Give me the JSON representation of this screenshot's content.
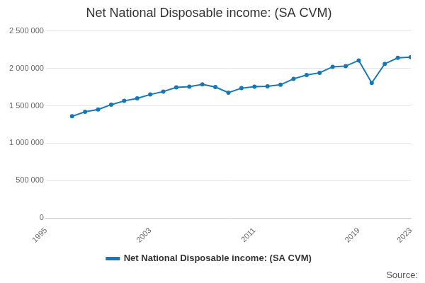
{
  "chart_data": {
    "type": "line",
    "title": "Net National Disposable income: (SA CVM)",
    "source": "Source:",
    "x": [
      1997,
      1998,
      1999,
      2000,
      2001,
      2002,
      2003,
      2004,
      2005,
      2006,
      2007,
      2008,
      2009,
      2010,
      2011,
      2012,
      2013,
      2014,
      2015,
      2016,
      2017,
      2018,
      2019,
      2020,
      2021,
      2022,
      2023
    ],
    "series": [
      {
        "name": "Net National Disposable income: (SA CVM)",
        "color": "#1478b8",
        "marker": "circle",
        "values": [
          1360000,
          1420000,
          1450000,
          1515000,
          1565000,
          1600000,
          1650000,
          1690000,
          1745000,
          1755000,
          1785000,
          1750000,
          1675000,
          1735000,
          1755000,
          1760000,
          1780000,
          1860000,
          1910000,
          1940000,
          2020000,
          2030000,
          2105000,
          1805000,
          2060000,
          2140000,
          2150000
        ]
      }
    ],
    "xlim": [
      1995,
      2023
    ],
    "xticks": [
      1995,
      2003,
      2011,
      2019,
      2023
    ],
    "ylim": [
      0,
      2500000
    ],
    "yticks": [
      0,
      {
        "value": 500000,
        "label": "500 000"
      },
      {
        "value": 1000000,
        "label": "1 000 000"
      },
      {
        "value": 1500000,
        "label": "1 500 000"
      },
      {
        "value": 2000000,
        "label": "2 000 000"
      },
      {
        "value": 2500000,
        "label": "2 500 000"
      }
    ],
    "grid": true,
    "legend": "bottom"
  }
}
